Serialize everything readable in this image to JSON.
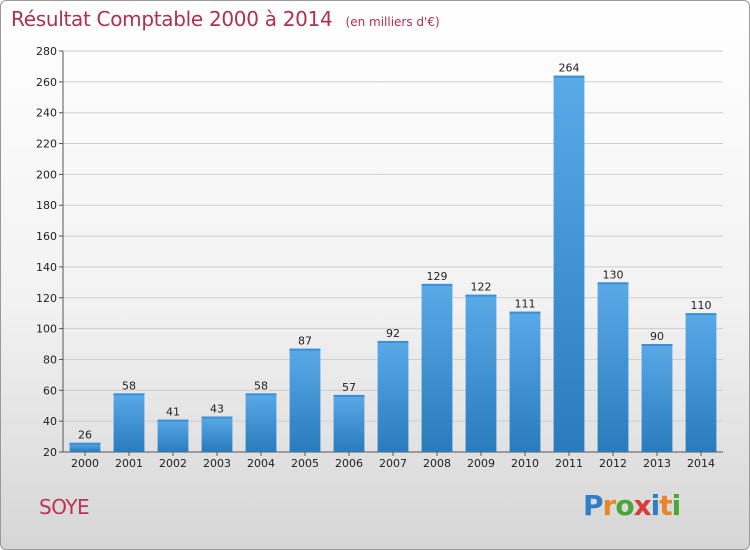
{
  "header": {
    "title": "Résultat Comptable 2000 à 2014",
    "subtitle": "(en milliers d'€)"
  },
  "footer": {
    "commune": "SOYE",
    "logo_text": "Proxiti"
  },
  "colors": {
    "title": "#b0304e",
    "bar_light": "#5aaae8",
    "bar_dark": "#2a7bbd",
    "grid": "#cfcfcf"
  },
  "chart_data": {
    "type": "bar",
    "categories": [
      "2000",
      "2001",
      "2002",
      "2003",
      "2004",
      "2005",
      "2006",
      "2007",
      "2008",
      "2009",
      "2010",
      "2011",
      "2012",
      "2013",
      "2014"
    ],
    "values": [
      26,
      58,
      41,
      43,
      58,
      87,
      57,
      92,
      129,
      122,
      111,
      264,
      130,
      90,
      110
    ],
    "title": "Résultat Comptable 2000 à 2014",
    "xlabel": "",
    "ylabel": "",
    "ylim": [
      20,
      280
    ],
    "yticks": [
      20,
      40,
      60,
      80,
      100,
      120,
      140,
      160,
      180,
      200,
      220,
      240,
      260,
      280
    ],
    "grid": true,
    "legend": "none"
  }
}
